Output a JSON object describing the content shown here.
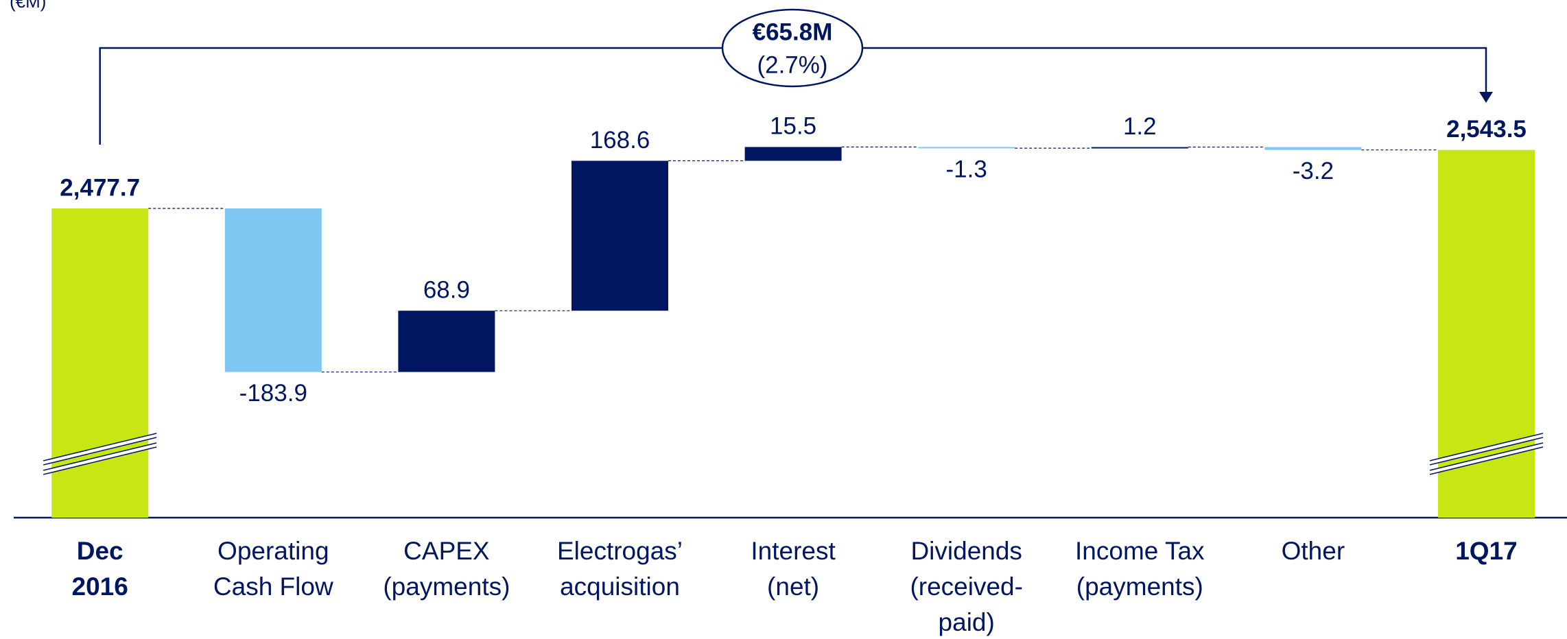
{
  "chart_data": {
    "type": "waterfall",
    "subtitle": "(€M)",
    "categories": [
      "Dec\n2016",
      "Operating\nCash Flow",
      "CAPEX\n(payments)",
      "Electrogas’\nacquisition",
      "Interest\n(net)",
      "Dividends\n(received-\npaid)",
      "Income Tax\n(payments)",
      "Other",
      "1Q17"
    ],
    "measures": [
      "total",
      "relative",
      "relative",
      "relative",
      "relative",
      "relative",
      "relative",
      "relative",
      "total"
    ],
    "values": [
      2477.7,
      -183.9,
      68.9,
      168.6,
      15.5,
      -1.3,
      1.2,
      -3.2,
      2543.5
    ],
    "value_labels": [
      "2,477.7",
      "-183.9",
      "68.9",
      "168.6",
      "15.5",
      "-1.3",
      "1.2",
      "-3.2",
      "2,543.5"
    ],
    "colors": {
      "total": "#c8e614",
      "increase": "#001660",
      "decrease": "#7dc7f0"
    },
    "ylim": [
      2130,
      2600
    ],
    "axis_break": true,
    "annotation": {
      "value": "€65.8M",
      "percent": "(2.7%)"
    }
  }
}
